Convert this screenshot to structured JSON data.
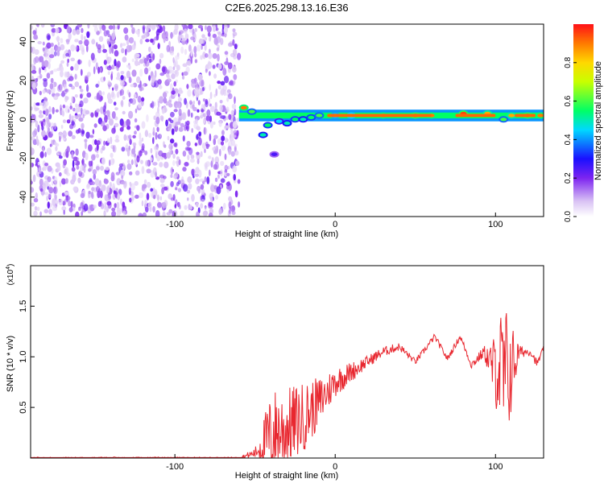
{
  "title": "C2E6.2025.298.13.16.E36",
  "chart_data": [
    {
      "type": "heatmap",
      "xlabel": "Height of straight line (km)",
      "ylabel": "Frequency (Hz)",
      "xlim": [
        -190,
        130
      ],
      "ylim": [
        -50,
        49
      ],
      "xticks": [
        -100,
        0,
        100
      ],
      "yticks": [
        -40,
        -20,
        0,
        20,
        40
      ],
      "colorbar": {
        "label": "Normalized spectral amplitude",
        "range": [
          0,
          1
        ],
        "ticks": [
          0.0,
          0.2,
          0.4,
          0.6,
          0.8
        ]
      },
      "regions": [
        {
          "name_desc": "broadband noise",
          "x_range": [
            -190,
            -60
          ],
          "freq_range": [
            -50,
            49
          ],
          "amplitude": 0.15
        },
        {
          "name_desc": "narrow line",
          "x_range": [
            -60,
            130
          ],
          "freq_center": 2,
          "amplitude": 0.9
        }
      ],
      "line_points": [
        {
          "x": -57,
          "f": 6,
          "a": 0.9
        },
        {
          "x": -52,
          "f": 4,
          "a": 0.6
        },
        {
          "x": -45,
          "f": -8,
          "a": 0.5
        },
        {
          "x": -42,
          "f": -3,
          "a": 0.55
        },
        {
          "x": -38,
          "f": -18,
          "a": 0.25
        },
        {
          "x": -35,
          "f": -1,
          "a": 0.45
        },
        {
          "x": -30,
          "f": -2,
          "a": 0.5
        },
        {
          "x": -25,
          "f": 0,
          "a": 0.55
        },
        {
          "x": -20,
          "f": 0,
          "a": 0.5
        },
        {
          "x": -15,
          "f": 1,
          "a": 0.55
        },
        {
          "x": -10,
          "f": 2,
          "a": 0.6
        },
        {
          "x": 0,
          "f": 2,
          "a": 0.7
        },
        {
          "x": 10,
          "f": 2,
          "a": 0.75
        },
        {
          "x": 30,
          "f": 2,
          "a": 0.9
        },
        {
          "x": 50,
          "f": 2,
          "a": 0.95
        },
        {
          "x": 60,
          "f": 2,
          "a": 0.9
        },
        {
          "x": 80,
          "f": 3,
          "a": 0.95
        },
        {
          "x": 95,
          "f": 3,
          "a": 0.85
        },
        {
          "x": 105,
          "f": 0,
          "a": 0.6
        },
        {
          "x": 110,
          "f": 2,
          "a": 0.85
        },
        {
          "x": 120,
          "f": 2,
          "a": 0.95
        },
        {
          "x": 128,
          "f": 2,
          "a": 0.9
        }
      ]
    },
    {
      "type": "line",
      "xlabel": "Height of straight line (km)",
      "ylabel": "SNR (10 * v/v)",
      "y_multiplier": "(x10",
      "y_multiplier_exp": "4",
      "y_multiplier_close": ")",
      "xlim": [
        -190,
        130
      ],
      "ylim": [
        0,
        1.9
      ],
      "xticks": [
        -100,
        0,
        100
      ],
      "yticks": [
        0.5,
        1.0,
        1.5
      ],
      "color": "#e8272f",
      "envelope": [
        {
          "x": -190,
          "y": 0.0,
          "noise": 0.01
        },
        {
          "x": -60,
          "y": 0.0,
          "noise": 0.01
        },
        {
          "x": -50,
          "y": 0.05,
          "noise": 0.05
        },
        {
          "x": -42,
          "y": 0.2,
          "noise": 0.35
        },
        {
          "x": -38,
          "y": 0.25,
          "noise": 0.45
        },
        {
          "x": -30,
          "y": 0.3,
          "noise": 0.4
        },
        {
          "x": -20,
          "y": 0.4,
          "noise": 0.35
        },
        {
          "x": -10,
          "y": 0.55,
          "noise": 0.25
        },
        {
          "x": 0,
          "y": 0.75,
          "noise": 0.15
        },
        {
          "x": 10,
          "y": 0.85,
          "noise": 0.1
        },
        {
          "x": 20,
          "y": 0.95,
          "noise": 0.06
        },
        {
          "x": 30,
          "y": 1.05,
          "noise": 0.05
        },
        {
          "x": 40,
          "y": 1.1,
          "noise": 0.04
        },
        {
          "x": 50,
          "y": 0.95,
          "noise": 0.03
        },
        {
          "x": 55,
          "y": 1.05,
          "noise": 0.03
        },
        {
          "x": 62,
          "y": 1.2,
          "noise": 0.03
        },
        {
          "x": 70,
          "y": 0.98,
          "noise": 0.03
        },
        {
          "x": 78,
          "y": 1.2,
          "noise": 0.03
        },
        {
          "x": 85,
          "y": 0.92,
          "noise": 0.04
        },
        {
          "x": 93,
          "y": 1.05,
          "noise": 0.06
        },
        {
          "x": 98,
          "y": 0.9,
          "noise": 0.25
        },
        {
          "x": 102,
          "y": 0.9,
          "noise": 0.55
        },
        {
          "x": 106,
          "y": 0.75,
          "noise": 0.8
        },
        {
          "x": 110,
          "y": 0.9,
          "noise": 0.45
        },
        {
          "x": 115,
          "y": 1.05,
          "noise": 0.06
        },
        {
          "x": 122,
          "y": 1.05,
          "noise": 0.04
        },
        {
          "x": 126,
          "y": 0.93,
          "noise": 0.04
        },
        {
          "x": 130,
          "y": 1.08,
          "noise": 0.03
        }
      ]
    }
  ]
}
